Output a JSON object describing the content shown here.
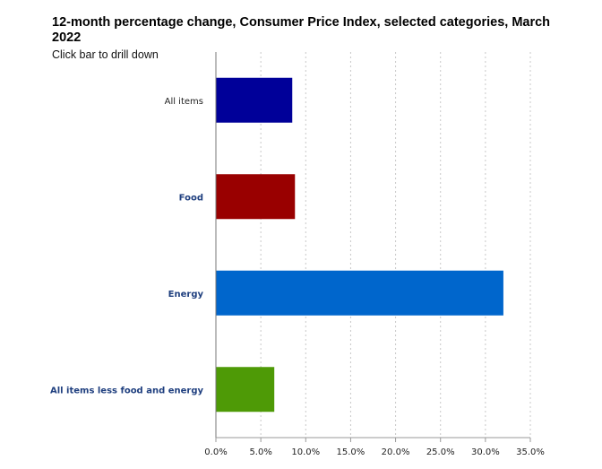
{
  "chart_data": {
    "type": "bar",
    "orientation": "horizontal",
    "title": "12-month percentage change, Consumer Price Index, selected categories, March 2022",
    "subtitle": "Click bar to drill down",
    "categories": [
      "All items",
      "Food",
      "Energy",
      "All items less food and energy"
    ],
    "values": [
      8.5,
      8.8,
      32.0,
      6.5
    ],
    "colors": [
      "#000099",
      "#990000",
      "#0066cc",
      "#4e9a06"
    ],
    "label_colors": [
      "#222222",
      "#1f3f7f",
      "#1f3f7f",
      "#1f3f7f"
    ],
    "xlim": [
      0,
      35
    ],
    "xticks": [
      "0.0%",
      "5.0%",
      "10.0%",
      "15.0%",
      "20.0%",
      "25.0%",
      "30.0%",
      "35.0%"
    ],
    "tick_values": [
      0,
      5,
      10,
      15,
      20,
      25,
      30,
      35
    ],
    "grid": true,
    "xlabel": "",
    "ylabel": ""
  }
}
